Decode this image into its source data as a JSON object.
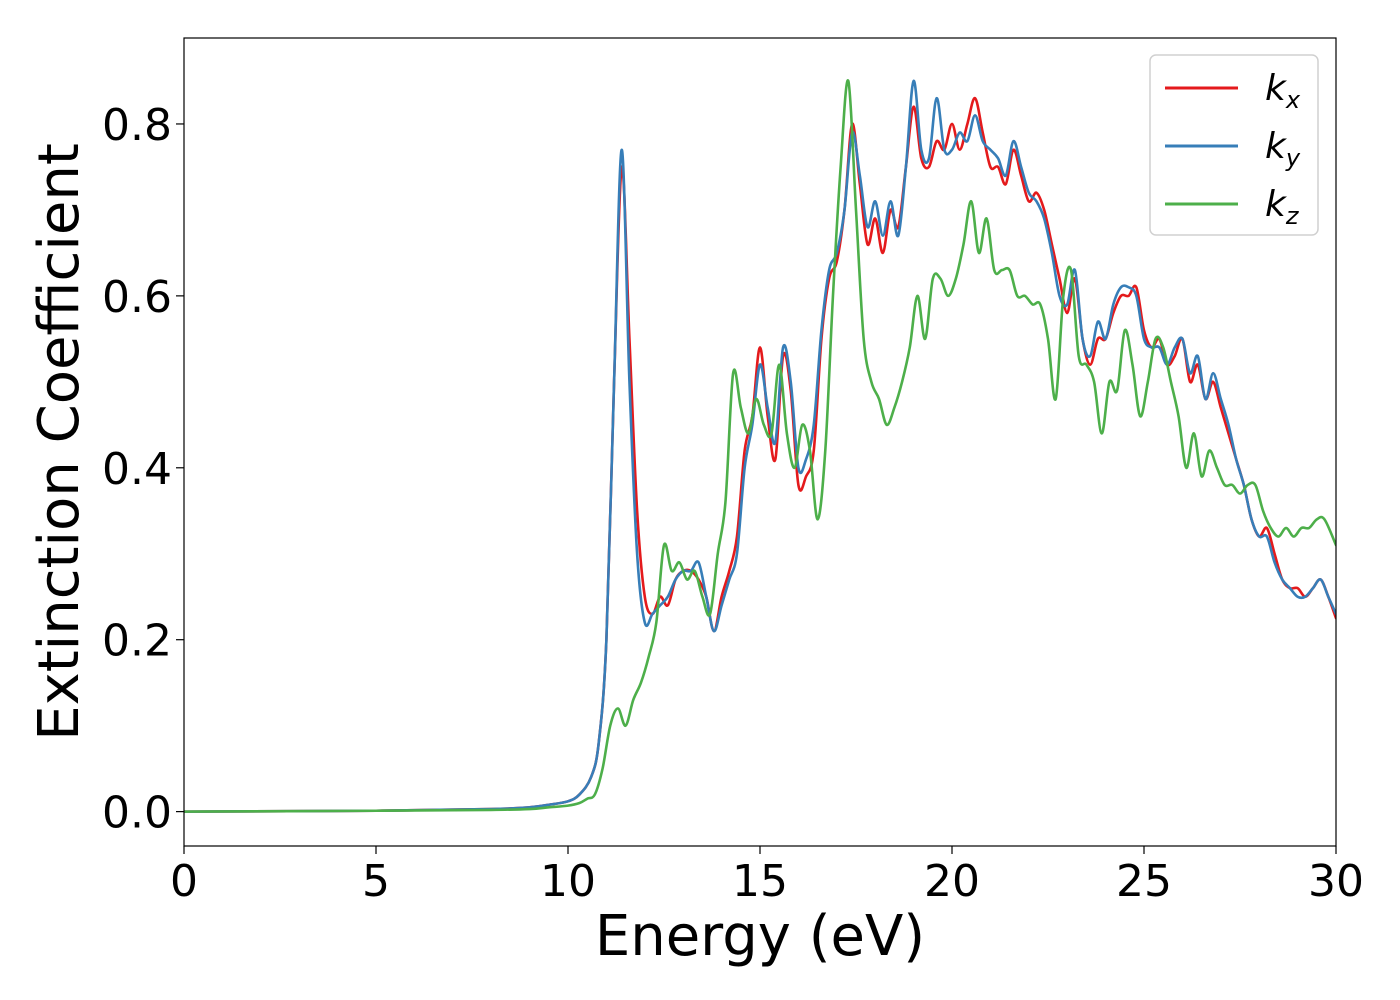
{
  "chart_data": {
    "type": "line",
    "title": "",
    "xlabel": "Energy (eV)",
    "ylabel": "Extinction Coefficient",
    "xlim": [
      0,
      30
    ],
    "ylim": [
      -0.04,
      0.9
    ],
    "xticks": [
      0,
      5,
      10,
      15,
      20,
      25,
      30
    ],
    "xtick_labels": [
      "0",
      "5",
      "10",
      "15",
      "20",
      "25",
      "30"
    ],
    "yticks": [
      0.0,
      0.2,
      0.4,
      0.6,
      0.8
    ],
    "ytick_labels": [
      "0.0",
      "0.2",
      "0.4",
      "0.6",
      "0.8"
    ],
    "grid": false,
    "legend_position": "top-right",
    "series": [
      {
        "name": "k",
        "subscript": "x",
        "color": "#e41a1c",
        "x": [
          0,
          5,
          8,
          9,
          9.5,
          10,
          10.3,
          10.6,
          10.8,
          11.0,
          11.2,
          11.4,
          11.6,
          11.8,
          12.0,
          12.2,
          12.4,
          12.6,
          12.8,
          13.0,
          13.2,
          13.4,
          13.6,
          13.8,
          14.0,
          14.2,
          14.4,
          14.6,
          14.8,
          15.0,
          15.2,
          15.4,
          15.6,
          15.8,
          16.0,
          16.2,
          16.4,
          16.6,
          16.8,
          17.0,
          17.2,
          17.4,
          17.6,
          17.8,
          18.0,
          18.2,
          18.4,
          18.6,
          18.8,
          19.0,
          19.2,
          19.4,
          19.6,
          19.8,
          20.0,
          20.2,
          20.4,
          20.6,
          20.8,
          21.0,
          21.2,
          21.4,
          21.6,
          21.8,
          22.0,
          22.2,
          22.4,
          22.6,
          22.8,
          23.0,
          23.2,
          23.4,
          23.6,
          23.8,
          24.0,
          24.2,
          24.4,
          24.6,
          24.8,
          25.0,
          25.2,
          25.4,
          25.6,
          25.8,
          26.0,
          26.2,
          26.4,
          26.6,
          26.8,
          27.0,
          27.2,
          27.4,
          27.6,
          27.8,
          28.0,
          28.2,
          28.4,
          28.6,
          28.8,
          29.0,
          29.2,
          29.4,
          29.6,
          29.8,
          30.0
        ],
        "y": [
          0.0,
          0.001,
          0.003,
          0.005,
          0.008,
          0.012,
          0.02,
          0.04,
          0.08,
          0.2,
          0.5,
          0.75,
          0.55,
          0.35,
          0.25,
          0.23,
          0.25,
          0.24,
          0.27,
          0.28,
          0.28,
          0.27,
          0.25,
          0.21,
          0.25,
          0.28,
          0.32,
          0.42,
          0.46,
          0.54,
          0.46,
          0.41,
          0.53,
          0.49,
          0.38,
          0.39,
          0.42,
          0.55,
          0.62,
          0.64,
          0.7,
          0.8,
          0.73,
          0.66,
          0.69,
          0.65,
          0.7,
          0.68,
          0.75,
          0.82,
          0.76,
          0.75,
          0.78,
          0.77,
          0.8,
          0.77,
          0.8,
          0.83,
          0.79,
          0.75,
          0.75,
          0.73,
          0.77,
          0.74,
          0.71,
          0.72,
          0.7,
          0.66,
          0.62,
          0.58,
          0.62,
          0.55,
          0.52,
          0.55,
          0.55,
          0.58,
          0.6,
          0.6,
          0.61,
          0.56,
          0.54,
          0.55,
          0.52,
          0.53,
          0.55,
          0.5,
          0.52,
          0.48,
          0.5,
          0.47,
          0.44,
          0.41,
          0.38,
          0.34,
          0.32,
          0.33,
          0.3,
          0.27,
          0.26,
          0.26,
          0.25,
          0.26,
          0.27,
          0.25,
          0.225
        ]
      },
      {
        "name": "k",
        "subscript": "y",
        "color": "#377eb8",
        "x": [
          0,
          5,
          8,
          9,
          9.5,
          10,
          10.3,
          10.6,
          10.8,
          11.0,
          11.2,
          11.4,
          11.6,
          11.8,
          12.0,
          12.2,
          12.4,
          12.6,
          12.8,
          13.0,
          13.2,
          13.4,
          13.6,
          13.8,
          14.0,
          14.2,
          14.4,
          14.6,
          14.8,
          15.0,
          15.2,
          15.4,
          15.6,
          15.8,
          16.0,
          16.2,
          16.4,
          16.6,
          16.8,
          17.0,
          17.2,
          17.4,
          17.6,
          17.8,
          18.0,
          18.2,
          18.4,
          18.6,
          18.8,
          19.0,
          19.2,
          19.4,
          19.6,
          19.8,
          20.0,
          20.2,
          20.4,
          20.6,
          20.8,
          21.0,
          21.2,
          21.4,
          21.6,
          21.8,
          22.0,
          22.2,
          22.4,
          22.6,
          22.8,
          23.0,
          23.2,
          23.4,
          23.6,
          23.8,
          24.0,
          24.2,
          24.4,
          24.6,
          24.8,
          25.0,
          25.2,
          25.4,
          25.6,
          25.8,
          26.0,
          26.2,
          26.4,
          26.6,
          26.8,
          27.0,
          27.2,
          27.4,
          27.6,
          27.8,
          28.0,
          28.2,
          28.4,
          28.6,
          28.8,
          29.0,
          29.2,
          29.4,
          29.6,
          29.8,
          30.0
        ],
        "y": [
          0.0,
          0.001,
          0.003,
          0.005,
          0.008,
          0.012,
          0.02,
          0.04,
          0.08,
          0.2,
          0.5,
          0.77,
          0.5,
          0.3,
          0.22,
          0.23,
          0.24,
          0.25,
          0.27,
          0.28,
          0.28,
          0.29,
          0.25,
          0.21,
          0.24,
          0.27,
          0.3,
          0.4,
          0.45,
          0.52,
          0.47,
          0.43,
          0.54,
          0.5,
          0.4,
          0.41,
          0.45,
          0.56,
          0.63,
          0.65,
          0.7,
          0.79,
          0.74,
          0.68,
          0.71,
          0.67,
          0.71,
          0.67,
          0.75,
          0.85,
          0.77,
          0.76,
          0.83,
          0.77,
          0.77,
          0.79,
          0.78,
          0.81,
          0.78,
          0.77,
          0.76,
          0.74,
          0.78,
          0.75,
          0.72,
          0.71,
          0.69,
          0.65,
          0.6,
          0.59,
          0.63,
          0.55,
          0.53,
          0.57,
          0.55,
          0.59,
          0.61,
          0.61,
          0.6,
          0.55,
          0.54,
          0.54,
          0.52,
          0.54,
          0.55,
          0.51,
          0.53,
          0.48,
          0.51,
          0.48,
          0.45,
          0.41,
          0.38,
          0.34,
          0.32,
          0.32,
          0.29,
          0.27,
          0.26,
          0.25,
          0.25,
          0.26,
          0.27,
          0.25,
          0.23
        ]
      },
      {
        "name": "k",
        "subscript": "z",
        "color": "#4daf4a",
        "x": [
          0,
          5,
          8,
          9,
          9.5,
          10,
          10.3,
          10.5,
          10.7,
          10.9,
          11.1,
          11.3,
          11.5,
          11.7,
          11.9,
          12.1,
          12.3,
          12.5,
          12.7,
          12.9,
          13.1,
          13.3,
          13.5,
          13.7,
          13.9,
          14.1,
          14.3,
          14.5,
          14.7,
          14.9,
          15.1,
          15.3,
          15.5,
          15.7,
          15.9,
          16.1,
          16.3,
          16.5,
          16.7,
          16.9,
          17.1,
          17.3,
          17.5,
          17.7,
          17.9,
          18.1,
          18.3,
          18.5,
          18.7,
          18.9,
          19.1,
          19.3,
          19.5,
          19.7,
          19.9,
          20.1,
          20.3,
          20.5,
          20.7,
          20.9,
          21.1,
          21.3,
          21.5,
          21.7,
          21.9,
          22.1,
          22.3,
          22.5,
          22.7,
          22.9,
          23.1,
          23.3,
          23.5,
          23.7,
          23.9,
          24.1,
          24.3,
          24.5,
          24.7,
          24.9,
          25.1,
          25.3,
          25.5,
          25.7,
          25.9,
          26.1,
          26.3,
          26.5,
          26.7,
          26.9,
          27.1,
          27.3,
          27.5,
          27.7,
          27.9,
          28.1,
          28.3,
          28.5,
          28.7,
          28.9,
          29.1,
          29.3,
          29.5,
          29.7,
          30.0
        ],
        "y": [
          0.0,
          0.001,
          0.002,
          0.003,
          0.005,
          0.007,
          0.01,
          0.015,
          0.02,
          0.05,
          0.1,
          0.12,
          0.1,
          0.13,
          0.15,
          0.18,
          0.22,
          0.31,
          0.28,
          0.29,
          0.27,
          0.28,
          0.25,
          0.23,
          0.3,
          0.36,
          0.51,
          0.47,
          0.44,
          0.48,
          0.45,
          0.44,
          0.52,
          0.44,
          0.4,
          0.45,
          0.42,
          0.34,
          0.42,
          0.6,
          0.75,
          0.85,
          0.7,
          0.55,
          0.5,
          0.48,
          0.45,
          0.47,
          0.5,
          0.54,
          0.6,
          0.55,
          0.62,
          0.62,
          0.6,
          0.62,
          0.66,
          0.71,
          0.65,
          0.69,
          0.63,
          0.63,
          0.63,
          0.6,
          0.6,
          0.59,
          0.59,
          0.55,
          0.48,
          0.6,
          0.63,
          0.53,
          0.52,
          0.5,
          0.44,
          0.5,
          0.49,
          0.56,
          0.52,
          0.46,
          0.5,
          0.55,
          0.54,
          0.5,
          0.46,
          0.4,
          0.44,
          0.39,
          0.42,
          0.4,
          0.38,
          0.38,
          0.37,
          0.38,
          0.38,
          0.35,
          0.33,
          0.32,
          0.33,
          0.32,
          0.33,
          0.33,
          0.34,
          0.34,
          0.31
        ]
      }
    ]
  }
}
